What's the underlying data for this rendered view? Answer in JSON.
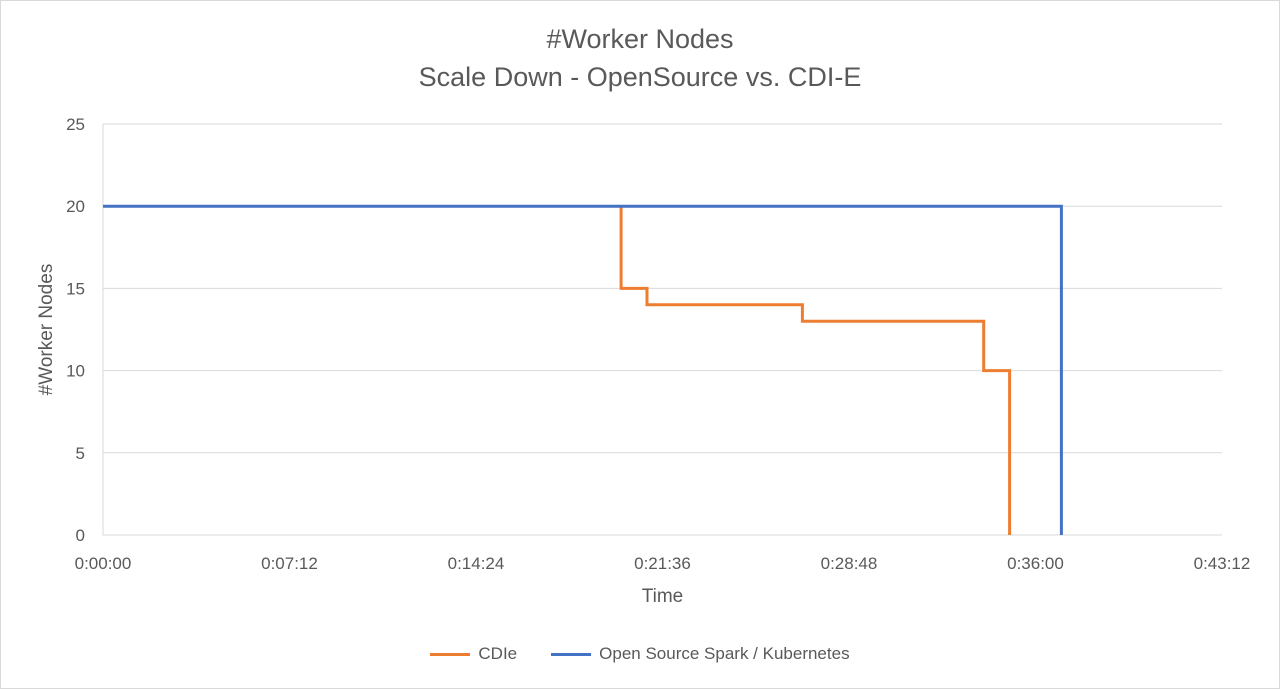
{
  "chart_data": {
    "type": "line",
    "title": "#Worker Nodes",
    "subtitle": "Scale Down - OpenSource vs. CDI-E",
    "xlabel": "Time",
    "ylabel": "#Worker Nodes",
    "x_unit": "h:mm:ss",
    "xlim": [
      "0:00:00",
      "0:43:12"
    ],
    "ylim": [
      0,
      25
    ],
    "x_ticks": [
      "0:00:00",
      "0:07:12",
      "0:14:24",
      "0:21:36",
      "0:28:48",
      "0:36:00",
      "0:43:12"
    ],
    "y_ticks": [
      0,
      5,
      10,
      15,
      20,
      25
    ],
    "grid": true,
    "legend_position": "bottom",
    "series": [
      {
        "name": "CDIe",
        "color": "#ED7D31",
        "points": [
          {
            "x": "0:20:00",
            "y": 20
          },
          {
            "x": "0:20:00",
            "y": 15
          },
          {
            "x": "0:21:00",
            "y": 15
          },
          {
            "x": "0:21:00",
            "y": 14
          },
          {
            "x": "0:27:00",
            "y": 14
          },
          {
            "x": "0:27:00",
            "y": 13
          },
          {
            "x": "0:34:00",
            "y": 13
          },
          {
            "x": "0:34:00",
            "y": 10
          },
          {
            "x": "0:35:00",
            "y": 10
          },
          {
            "x": "0:35:00",
            "y": 0
          }
        ]
      },
      {
        "name": "Open Source Spark / Kubernetes",
        "color": "#4472C4",
        "points": [
          {
            "x": "0:00:00",
            "y": 20
          },
          {
            "x": "0:37:00",
            "y": 20
          },
          {
            "x": "0:37:00",
            "y": 0
          }
        ]
      }
    ]
  }
}
